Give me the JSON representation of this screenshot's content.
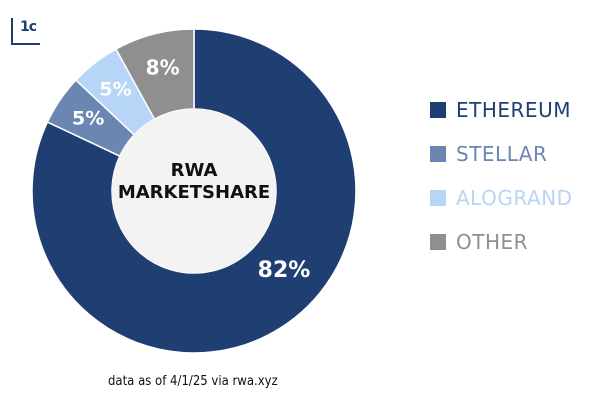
{
  "logo": {
    "text": "1c",
    "icon": "corner-bracket-icon"
  },
  "chart_data": {
    "type": "pie",
    "title": "RWA MARKETSHARE",
    "series": [
      {
        "name": "ETHEREUM",
        "value": 82,
        "label": "82%",
        "color": "#1f3f73"
      },
      {
        "name": "STELLAR",
        "value": 5,
        "label": "5%",
        "color": "#6b86b1"
      },
      {
        "name": "ALOGRAND",
        "value": 5,
        "label": "5%",
        "color": "#b7d5f7"
      },
      {
        "name": "OTHER",
        "value": 8,
        "label": "8%",
        "color": "#8f8f8f"
      }
    ],
    "legend_position": "right"
  },
  "footnote": "data as of 4/1/25 via rwa.xyz"
}
